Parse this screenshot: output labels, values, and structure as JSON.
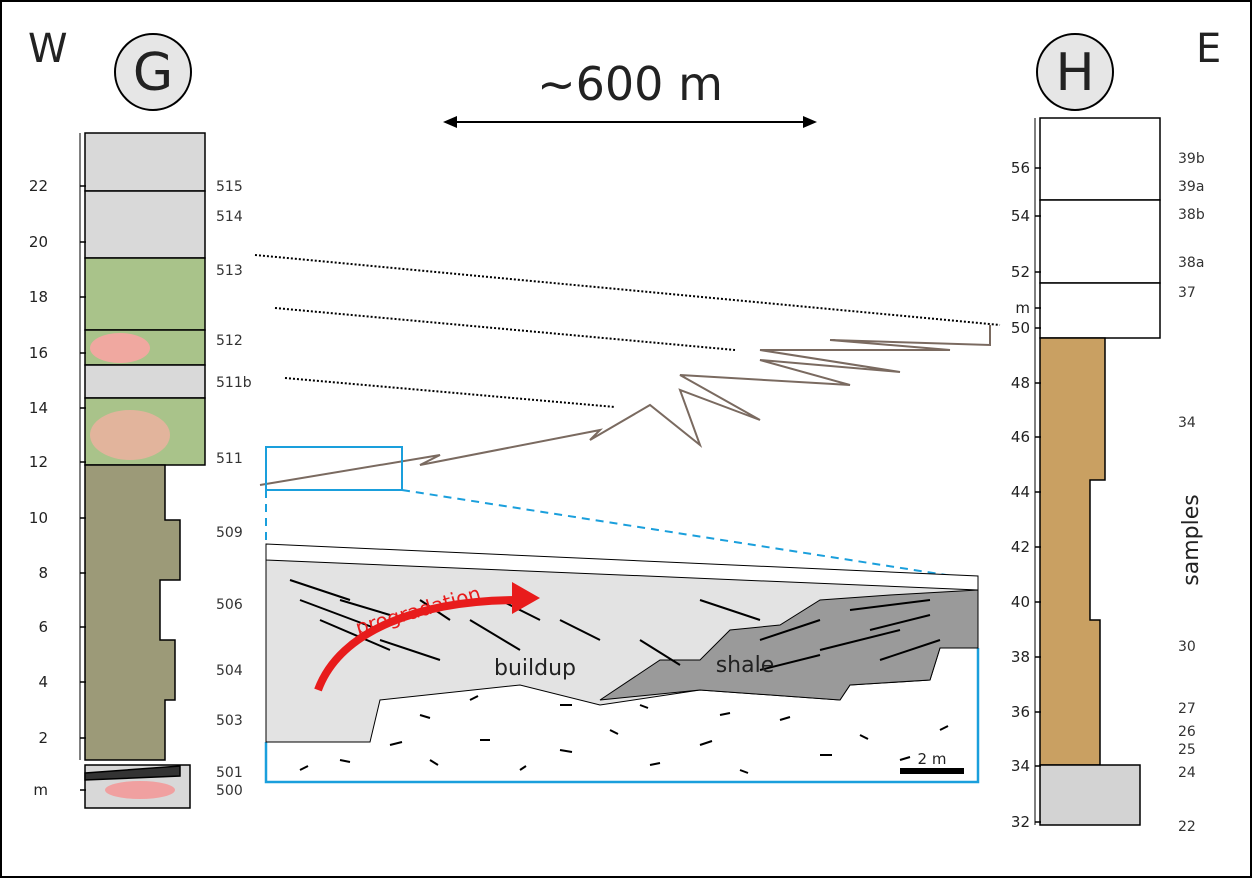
{
  "header": {
    "west": "W",
    "east": "E",
    "distance": "~600 m"
  },
  "columns": [
    {
      "label": "G",
      "scale": [
        "22",
        "20",
        "18",
        "16",
        "14",
        "12",
        "10",
        "8",
        "6",
        "4",
        "2",
        "m"
      ],
      "samples": [
        "515",
        "514",
        "513",
        "512",
        "511b",
        "511",
        "509",
        "506",
        "504",
        "503",
        "501",
        "500"
      ]
    },
    {
      "label": "H",
      "scale": [
        "56",
        "54",
        "52",
        "m",
        "50",
        "48",
        "46",
        "44",
        "42",
        "40",
        "38",
        "36",
        "34",
        "32"
      ],
      "samples": [
        "39b",
        "39a",
        "38b",
        "38a",
        "37",
        "34",
        "30",
        "27",
        "26",
        "25",
        "24",
        "22"
      ],
      "samples_title": "samples"
    }
  ],
  "inset": {
    "arrow_label": "progradation",
    "buildup": "buildup",
    "shale": "shale",
    "scale_bar": "2 m"
  }
}
